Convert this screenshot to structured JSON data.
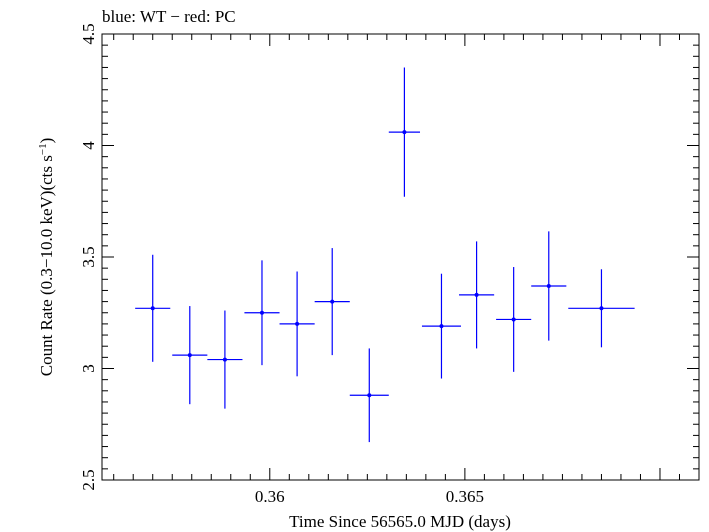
{
  "chart_data": {
    "type": "scatter",
    "title": "blue: WT − red: PC",
    "xlabel": "Time Since 56565.0 MJD (days)",
    "ylabel_main": "Count Rate (0.3−10.0 keV)(cts s",
    "ylabel_sup": "−1",
    "ylabel_end": ")",
    "xlim": [
      0.3557,
      0.371
    ],
    "ylim": [
      2.5,
      4.5
    ],
    "x_ticks": [
      0.36,
      0.365
    ],
    "x_tick_labels": [
      "0.36",
      "0.365"
    ],
    "y_ticks": [
      2.5,
      3,
      3.5,
      4,
      4.5
    ],
    "y_tick_labels": [
      "2.5",
      "3",
      "3.5",
      "4",
      "4.5"
    ],
    "grid": false,
    "series": [
      {
        "color": "#0000ff",
        "points": [
          {
            "x": 0.357,
            "xerr": 0.00045,
            "y": 3.27,
            "yerr": 0.24
          },
          {
            "x": 0.35795,
            "xerr": 0.00045,
            "y": 3.06,
            "yerr": 0.22
          },
          {
            "x": 0.35885,
            "xerr": 0.00045,
            "y": 3.04,
            "yerr": 0.22
          },
          {
            "x": 0.3598,
            "xerr": 0.00045,
            "y": 3.25,
            "yerr": 0.235
          },
          {
            "x": 0.3607,
            "xerr": 0.00045,
            "y": 3.2,
            "yerr": 0.235
          },
          {
            "x": 0.3616,
            "xerr": 0.00045,
            "y": 3.3,
            "yerr": 0.24
          },
          {
            "x": 0.36255,
            "xerr": 0.0005,
            "y": 2.88,
            "yerr": 0.21
          },
          {
            "x": 0.36345,
            "xerr": 0.0004,
            "y": 4.06,
            "yerr": 0.29
          },
          {
            "x": 0.3644,
            "xerr": 0.0005,
            "y": 3.19,
            "yerr": 0.235
          },
          {
            "x": 0.3653,
            "xerr": 0.00045,
            "y": 3.33,
            "yerr": 0.24
          },
          {
            "x": 0.36625,
            "xerr": 0.00045,
            "y": 3.22,
            "yerr": 0.235
          },
          {
            "x": 0.36715,
            "xerr": 0.00045,
            "y": 3.37,
            "yerr": 0.245
          },
          {
            "x": 0.3685,
            "xerr": 0.00085,
            "y": 3.27,
            "yerr": 0.175
          }
        ]
      }
    ]
  }
}
